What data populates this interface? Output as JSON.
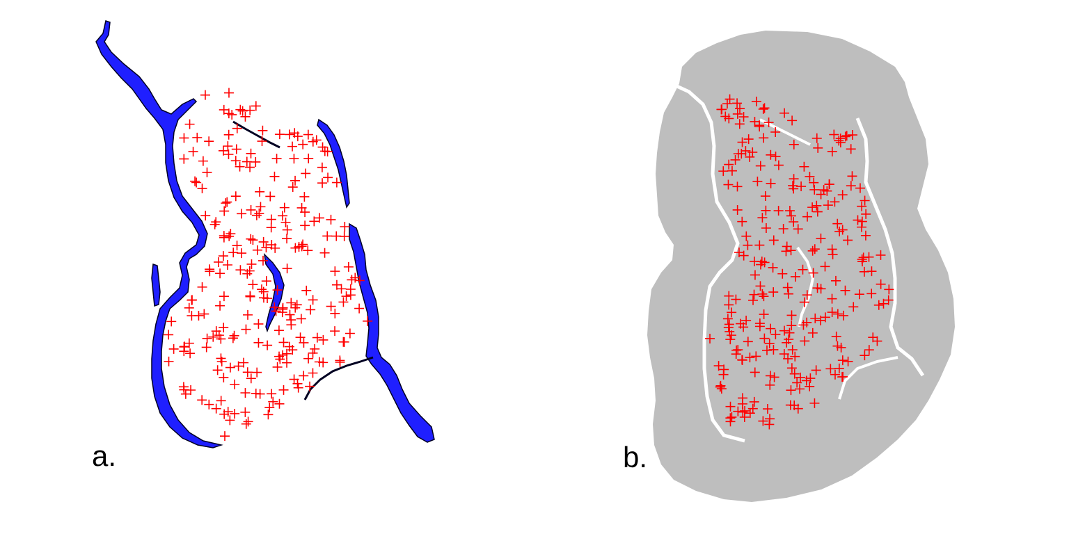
{
  "panels": [
    {
      "id": "a",
      "label": "a.",
      "description_colors": {
        "water": "#1a1aff",
        "outline": "#000000",
        "points": "#ff0000"
      }
    },
    {
      "id": "b",
      "label": "b.",
      "description_colors": {
        "mask": "#bebebe",
        "gap": "#ffffff",
        "points": "#ff0000"
      }
    }
  ],
  "colors": {
    "water": "#1f1fff",
    "water_outline": "#000022",
    "mask": "#bebebe",
    "points": "#ff0000",
    "background": "#ffffff"
  },
  "icons": {
    "point_marker": "plus-icon"
  }
}
